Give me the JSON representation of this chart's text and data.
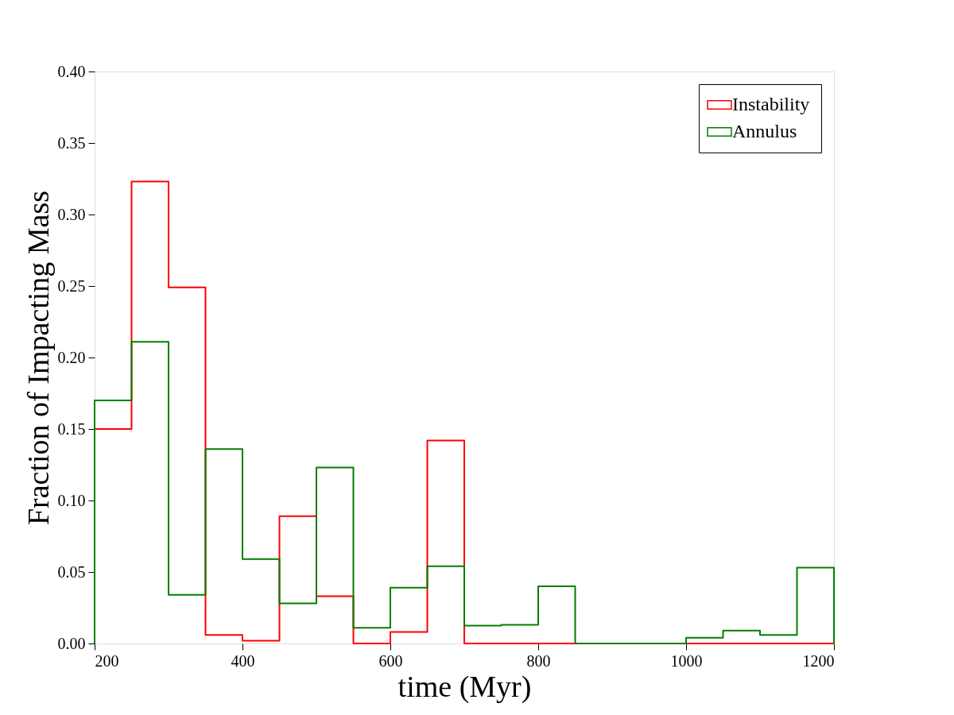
{
  "chart_data": {
    "type": "histogram",
    "xlabel": "time (Myr)",
    "ylabel": "Fraction of Impacting Mass",
    "bins": [
      200,
      250,
      300,
      350,
      400,
      450,
      500,
      550,
      600,
      650,
      700,
      750,
      800,
      850,
      900,
      950,
      1000,
      1050,
      1100,
      1150,
      1200
    ],
    "series": [
      {
        "name": "Instability",
        "color": "#ff0000",
        "values": [
          0.15,
          0.323,
          0.249,
          0.006,
          0.002,
          0.089,
          0.033,
          0,
          0.008,
          0.142,
          0,
          0,
          0,
          0,
          0,
          0,
          0,
          0,
          0,
          0
        ]
      },
      {
        "name": "Annulus",
        "color": "#008000",
        "values": [
          0.17,
          0.211,
          0.034,
          0.136,
          0.059,
          0.028,
          0.123,
          0.011,
          0.039,
          0.054,
          0.0125,
          0.013,
          0.04,
          0,
          0,
          0,
          0.004,
          0.009,
          0.006,
          0.053
        ]
      }
    ],
    "xlim": [
      200,
      1200
    ],
    "xticks": [
      200,
      400,
      600,
      800,
      1000,
      1200
    ],
    "ylim": [
      0,
      0.4
    ],
    "yticks": [
      {
        "value": 0,
        "label": "0.00"
      },
      {
        "value": 0.05,
        "label": "0.05"
      },
      {
        "value": 0.1,
        "label": "0.10"
      },
      {
        "value": 0.15,
        "label": "0.15"
      },
      {
        "value": 0.2,
        "label": "0.20"
      },
      {
        "value": 0.25,
        "label": "0.25"
      },
      {
        "value": 0.3,
        "label": "0.30"
      },
      {
        "value": 0.35,
        "label": "0.35"
      },
      {
        "value": 0.4,
        "label": "0.40"
      }
    ],
    "grid": false,
    "legend": "top right"
  }
}
